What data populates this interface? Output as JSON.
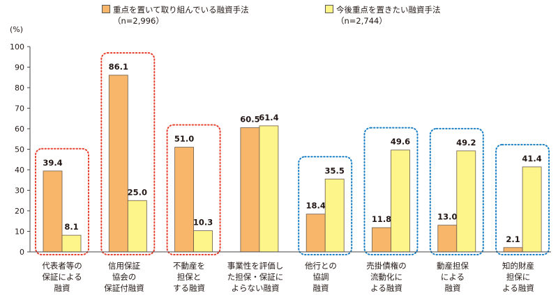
{
  "chart_data": {
    "type": "bar",
    "unit_label": "(%)",
    "ylim": [
      0,
      100
    ],
    "yticks": [
      0,
      10,
      20,
      30,
      40,
      50,
      60,
      70,
      80,
      90,
      100
    ],
    "grid": false,
    "legend_position": "top",
    "categories": [
      "代表者等の\n保証による\n融資",
      "信用保証\n協会の\n保証付融資",
      "不動産を\n担保と\nする融資",
      "事業性を評価し\nた担保・保証に\nよらない融資",
      "他行との\n協調\n融資",
      "売掛債権の\n流動化に\nよる融資",
      "動産担保\nによる\n融資",
      "知的財産\n担保に\nよる融資"
    ],
    "series": [
      {
        "name": "重点を置いて取り組んでいる融資手法",
        "n_label": "（n=2,996）",
        "color": "#f7b66a",
        "values": [
          39.4,
          86.1,
          51.0,
          60.5,
          18.4,
          11.8,
          13.0,
          2.1
        ]
      },
      {
        "name": "今後重点を置きたい融資手法",
        "n_label": "（n=2,744）",
        "color": "#fdf48a",
        "values": [
          8.1,
          25.0,
          10.3,
          61.4,
          35.5,
          49.6,
          49.2,
          41.4
        ]
      }
    ],
    "value_labels": [
      [
        "39.4",
        "86.1",
        "51.0",
        "60.5",
        "18.4",
        "11.8",
        "13.0",
        "2.1"
      ],
      [
        "8.1",
        "25.0",
        "10.3",
        "61.4",
        "35.5",
        "49.6",
        "49.2",
        "41.4"
      ]
    ],
    "highlight_boxes": [
      {
        "category_index": 0,
        "color": "#e8412f"
      },
      {
        "category_index": 1,
        "color": "#e8412f"
      },
      {
        "category_index": 2,
        "color": "#e8412f"
      },
      {
        "category_index": 4,
        "color": "#1a7fc4"
      },
      {
        "category_index": 5,
        "color": "#1a7fc4"
      },
      {
        "category_index": 6,
        "color": "#1a7fc4"
      },
      {
        "category_index": 7,
        "color": "#1a7fc4"
      }
    ]
  }
}
